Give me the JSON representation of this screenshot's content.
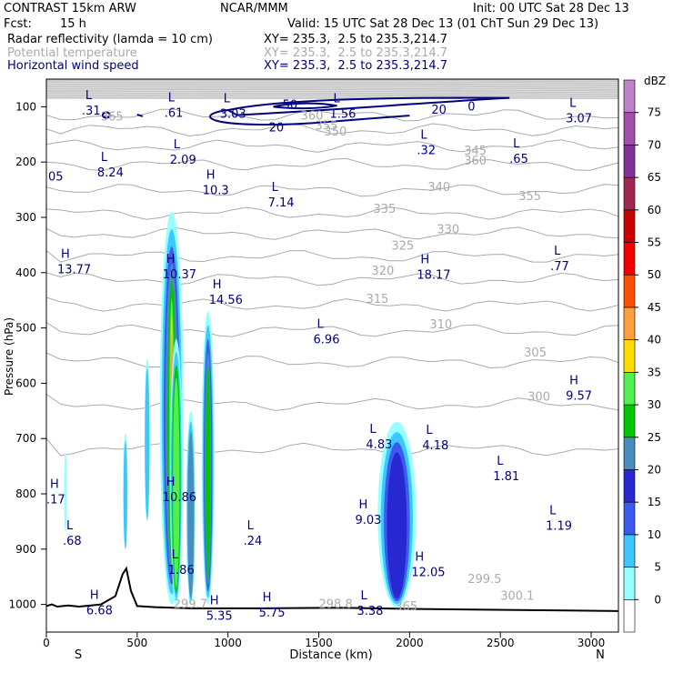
{
  "header": {
    "model": "CONTRAST 15km ARW",
    "org": "NCAR/MMM",
    "init": "Init: 00 UTC Sat 28 Dec 13",
    "fcst_label": "Fcst:",
    "fcst_value": "15 h",
    "valid": "Valid: 15 UTC Sat 28 Dec 13 (01 ChT Sun 29 Dec 13)",
    "fields": [
      {
        "name": "Radar reflectivity (lamda = 10 cm)",
        "xy": "XY= 235.3,  2.5 to 235.3,214.7",
        "color": "#000000"
      },
      {
        "name": "Potential temperature",
        "xy": "XY= 235.3,  2.5 to 235.3,214.7",
        "color": "#aaaaaa"
      },
      {
        "name": "Horizontal wind speed",
        "xy": "XY= 235.3,  2.5 to 235.3,214.7",
        "color": "#000080"
      }
    ]
  },
  "chart_data": {
    "type": "heatmap",
    "title": "",
    "xlabel": "Distance (km)",
    "ylabel": "Pressure (hPa)",
    "xlim": [
      0,
      3150
    ],
    "ylim": [
      1050,
      50
    ],
    "x_ticks": [
      "0",
      "500",
      "1000",
      "1500",
      "2000",
      "2500",
      "3000"
    ],
    "y_ticks": [
      "100",
      "200",
      "300",
      "400",
      "500",
      "600",
      "700",
      "800",
      "900",
      "1000"
    ],
    "x_ends": {
      "left": "S",
      "right": "N"
    },
    "colorbar": {
      "unit": "dBZ",
      "levels": [
        "0",
        "5",
        "10",
        "15",
        "20",
        "25",
        "30",
        "35",
        "40",
        "45",
        "50",
        "55",
        "60",
        "65",
        "70",
        "75"
      ],
      "colors": [
        "#ffffff",
        "#96ffff",
        "#3cc8ff",
        "#3c5af0",
        "#2828d2",
        "#4b8cbe",
        "#00c800",
        "#50f050",
        "#ffdc00",
        "#ffa03c",
        "#ff5000",
        "#f00000",
        "#c80000",
        "#a02850",
        "#823296",
        "#a050aa",
        "#be82c8"
      ]
    },
    "theta_labels": [
      "365",
      "360",
      "355",
      "350",
      "345",
      "340",
      "335",
      "330",
      "325",
      "320",
      "315",
      "310",
      "305",
      "300",
      "299.5",
      "300.1",
      "298.8",
      "299.7",
      "365",
      "360",
      "355"
    ],
    "wind_labels": [
      "50",
      "20",
      "20",
      "0"
    ],
    "extrema": [
      {
        "type": "L",
        "value": ".31"
      },
      {
        "type": "L",
        "value": ".61"
      },
      {
        "type": "L",
        "value": "3.03"
      },
      {
        "type": "L",
        "value": "1.56"
      },
      {
        "type": "L",
        "value": "3.07"
      },
      {
        "type": "L",
        "value": "8.24"
      },
      {
        "type": "L",
        "value": "2.09"
      },
      {
        "type": "L",
        "value": ".32"
      },
      {
        "type": "L",
        "value": ".65"
      },
      {
        "type": "H",
        "value": "10.3"
      },
      {
        "type": "L",
        "value": "7.14"
      },
      {
        "type": "H",
        "value": "13.77"
      },
      {
        "type": "H",
        "value": "10.37"
      },
      {
        "type": "H",
        "value": "18.17"
      },
      {
        "type": "L",
        "value": ".77"
      },
      {
        "type": "H",
        "value": "14.56"
      },
      {
        "type": "L",
        "value": "6.96"
      },
      {
        "type": "H",
        "value": "9.57"
      },
      {
        "type": "L",
        "value": "4.83"
      },
      {
        "type": "L",
        "value": "4.18"
      },
      {
        "type": "L",
        "value": "1.81"
      },
      {
        "type": "H",
        "value": ".17"
      },
      {
        "type": "H",
        "value": "10.86"
      },
      {
        "type": "H",
        "value": "9.03"
      },
      {
        "type": "L",
        "value": "1.19"
      },
      {
        "type": "L",
        "value": ".68"
      },
      {
        "type": "L",
        "value": ".24"
      },
      {
        "type": "L",
        "value": "1.86"
      },
      {
        "type": "H",
        "value": "12.05"
      },
      {
        "type": "H",
        "value": "6.68"
      },
      {
        "type": "H",
        "value": "5.35"
      },
      {
        "type": "H",
        "value": "5.75"
      },
      {
        "type": "L",
        "value": "3.38"
      },
      {
        "type": "L",
        "value": "05"
      }
    ]
  }
}
